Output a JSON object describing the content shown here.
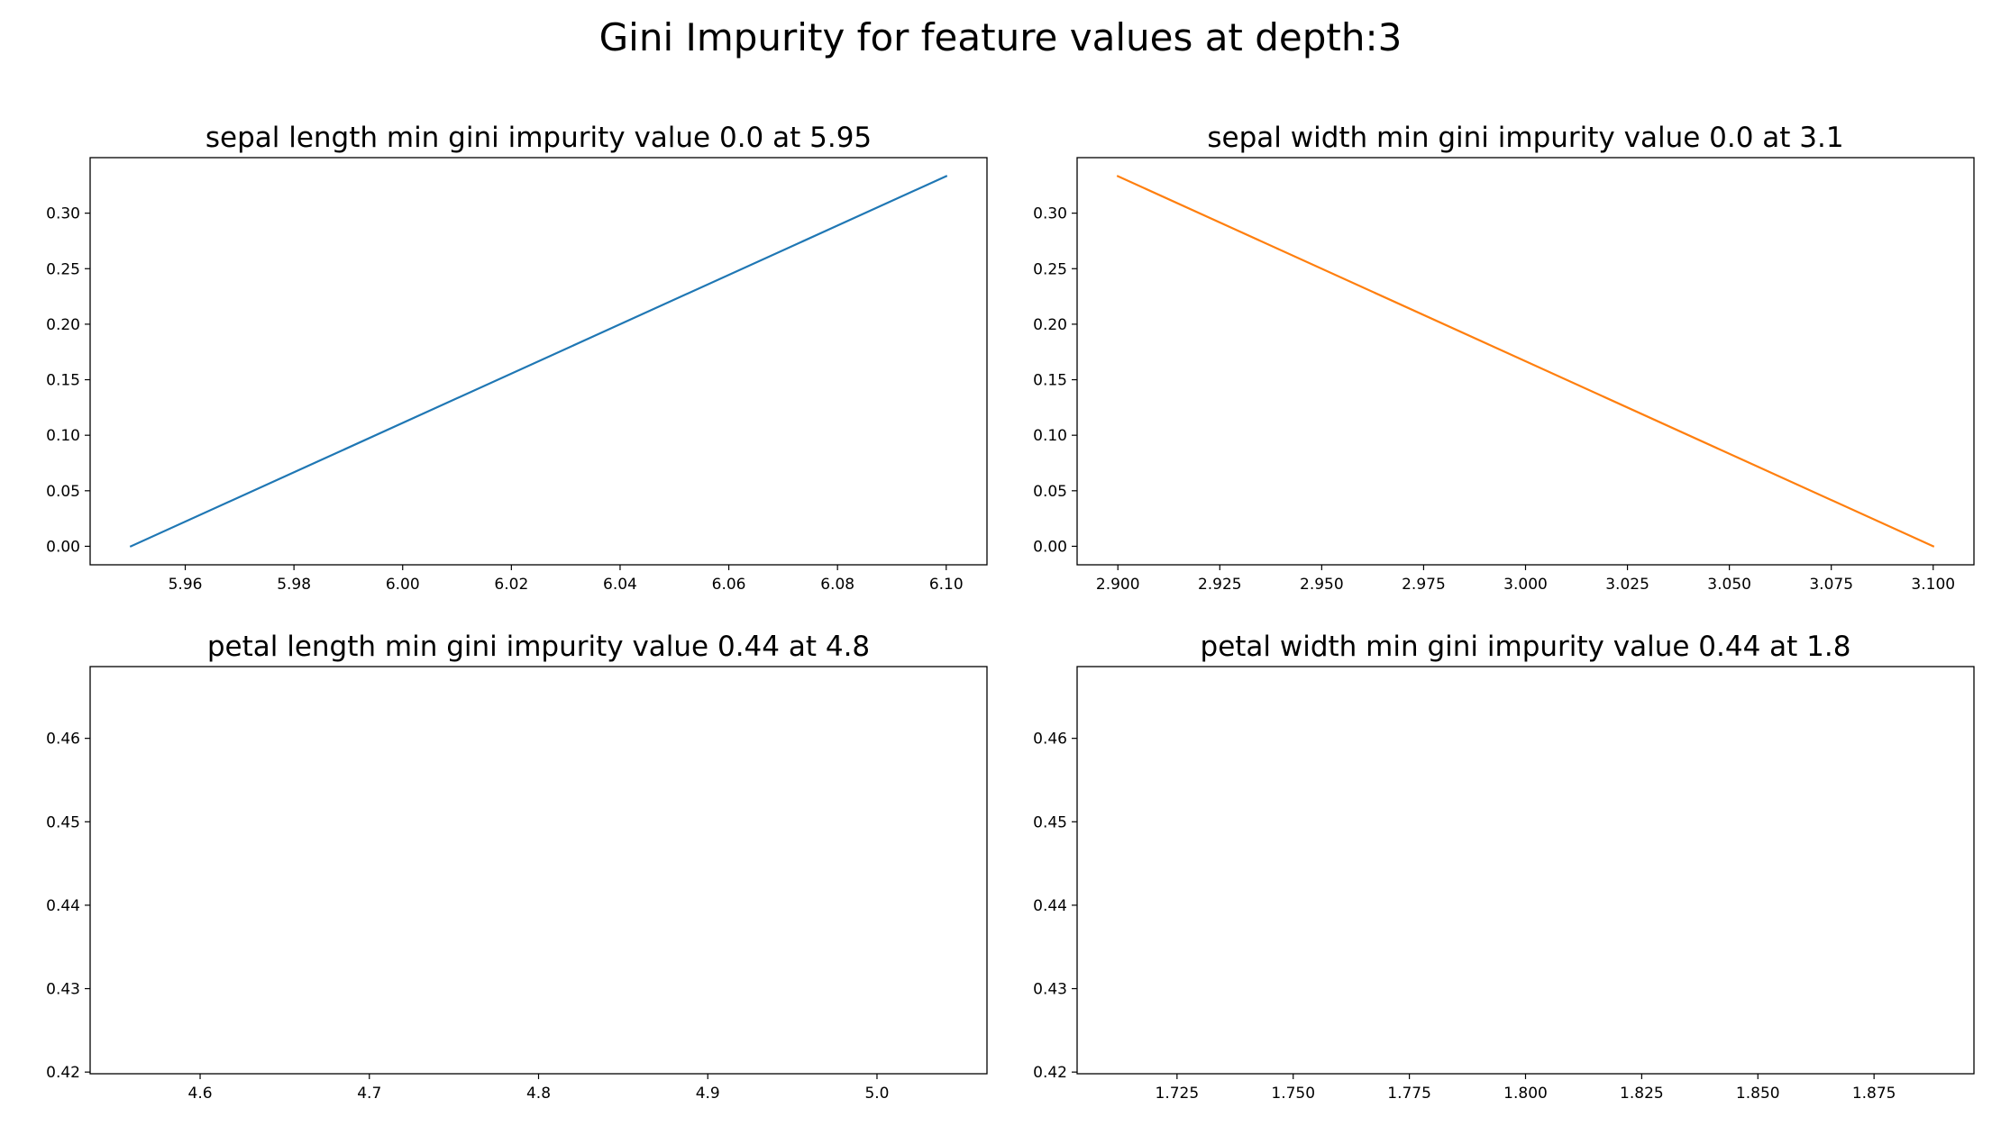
{
  "title": "Gini Impurity for feature values at depth:3",
  "chart_data": [
    {
      "type": "line",
      "title": "sepal length min gini impurity value 0.0 at 5.95",
      "xlabel": "",
      "ylabel": "",
      "color": "#1f77b4",
      "xlim": [
        5.9425,
        6.1075
      ],
      "ylim": [
        -0.01667,
        0.35
      ],
      "xticks": [
        5.96,
        5.98,
        6.0,
        6.02,
        6.04,
        6.06,
        6.08,
        6.1
      ],
      "xtick_labels": [
        "5.96",
        "5.98",
        "6.00",
        "6.02",
        "6.04",
        "6.06",
        "6.08",
        "6.10"
      ],
      "yticks": [
        0.0,
        0.05,
        0.1,
        0.15,
        0.2,
        0.25,
        0.3
      ],
      "ytick_labels": [
        "0.00",
        "0.05",
        "0.10",
        "0.15",
        "0.20",
        "0.25",
        "0.30"
      ],
      "series": [
        {
          "x": [
            5.95,
            6.1
          ],
          "y": [
            0.0,
            0.3333
          ]
        }
      ],
      "grid": false
    },
    {
      "type": "line",
      "title": "sepal width min gini impurity value 0.0 at 3.1",
      "xlabel": "",
      "ylabel": "",
      "color": "#ff7f0e",
      "xlim": [
        2.89,
        3.11
      ],
      "ylim": [
        -0.01667,
        0.35
      ],
      "xticks": [
        2.9,
        2.925,
        2.95,
        2.975,
        3.0,
        3.025,
        3.05,
        3.075,
        3.1
      ],
      "xtick_labels": [
        "2.900",
        "2.925",
        "2.950",
        "2.975",
        "3.000",
        "3.025",
        "3.050",
        "3.075",
        "3.100"
      ],
      "yticks": [
        0.0,
        0.05,
        0.1,
        0.15,
        0.2,
        0.25,
        0.3
      ],
      "ytick_labels": [
        "0.00",
        "0.05",
        "0.10",
        "0.15",
        "0.20",
        "0.25",
        "0.30"
      ],
      "series": [
        {
          "x": [
            2.9,
            3.1
          ],
          "y": [
            0.3333,
            0.0
          ]
        }
      ],
      "grid": false
    },
    {
      "type": "line",
      "title": "petal length min gini impurity value 0.44 at 4.8",
      "xlabel": "",
      "ylabel": "",
      "color": "#2ca02c",
      "xlim": [
        4.535,
        5.065
      ],
      "ylim": [
        0.4198,
        0.4686
      ],
      "xticks": [
        4.6,
        4.7,
        4.8,
        4.9,
        5.0
      ],
      "xtick_labels": [
        "4.6",
        "4.7",
        "4.8",
        "4.9",
        "5.0"
      ],
      "yticks": [
        0.42,
        0.43,
        0.44,
        0.45,
        0.46
      ],
      "ytick_labels": [
        "0.42",
        "0.43",
        "0.44",
        "0.45",
        "0.46"
      ],
      "series": [],
      "grid": false
    },
    {
      "type": "line",
      "title": "petal width min gini impurity value 0.44 at 1.8",
      "xlabel": "",
      "ylabel": "",
      "color": "#d62728",
      "xlim": [
        1.7035,
        1.8965
      ],
      "ylim": [
        0.4198,
        0.4686
      ],
      "xticks": [
        1.725,
        1.75,
        1.775,
        1.8,
        1.825,
        1.85,
        1.875
      ],
      "xtick_labels": [
        "1.725",
        "1.750",
        "1.775",
        "1.800",
        "1.825",
        "1.850",
        "1.875"
      ],
      "yticks": [
        0.42,
        0.43,
        0.44,
        0.45,
        0.46
      ],
      "ytick_labels": [
        "0.42",
        "0.43",
        "0.44",
        "0.45",
        "0.46"
      ],
      "series": [],
      "grid": false
    }
  ]
}
